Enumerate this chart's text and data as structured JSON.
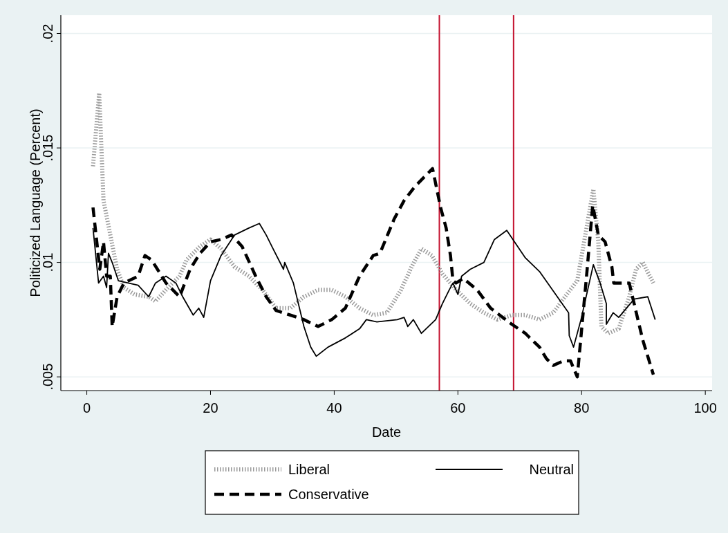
{
  "chart_data": {
    "type": "line",
    "xlabel": "Date",
    "ylabel": "Politicized Language (Percent)",
    "xlim": [
      -4.2,
      101.1
    ],
    "ylim": [
      0.0044,
      0.0208
    ],
    "xticks": [
      0,
      20,
      40,
      60,
      80,
      100
    ],
    "yticks": [
      {
        "value": 0.005,
        "label": ".005"
      },
      {
        "value": 0.01,
        "label": ".01"
      },
      {
        "value": 0.015,
        "label": ".015"
      },
      {
        "value": 0.02,
        "label": ".02"
      }
    ],
    "grid": "y",
    "legend": "bottom",
    "series": [
      {
        "name": "Liberal",
        "color": "#9a9a9a",
        "line_style": "dotted",
        "x": [
          1.0,
          2.0,
          2.7,
          3.8,
          4.9,
          6.0,
          7.7,
          10.0,
          11.1,
          12.8,
          15.0,
          16.1,
          18.3,
          20.0,
          21.7,
          23.9,
          26.2,
          28.4,
          30.6,
          32.9,
          35.1,
          37.4,
          39.6,
          41.8,
          44.1,
          46.3,
          48.5,
          50.8,
          52.5,
          54.1,
          55.8,
          57.5,
          59.7,
          62.0,
          64.2,
          66.4,
          68.7,
          70.9,
          73.2,
          75.4,
          77.6,
          79.3,
          81.9,
          82.7,
          83.2,
          84.3,
          86.0,
          87.7,
          88.8,
          89.9,
          91.6
        ],
        "values": [
          0.0142,
          0.0174,
          0.0127,
          0.0112,
          0.0097,
          0.0089,
          0.0086,
          0.0085,
          0.0083,
          0.0088,
          0.0094,
          0.0101,
          0.0107,
          0.011,
          0.0106,
          0.0098,
          0.0094,
          0.0088,
          0.008,
          0.008,
          0.0085,
          0.0088,
          0.0088,
          0.0085,
          0.008,
          0.0077,
          0.0078,
          0.0088,
          0.0098,
          0.0106,
          0.0103,
          0.0095,
          0.0088,
          0.0082,
          0.0078,
          0.0075,
          0.0077,
          0.0077,
          0.0075,
          0.0078,
          0.0086,
          0.0092,
          0.0132,
          0.0109,
          0.0072,
          0.0069,
          0.0071,
          0.0085,
          0.0097,
          0.01,
          0.0091
        ]
      },
      {
        "name": "Neutral",
        "color": "#000000",
        "line_style": "solid",
        "x": [
          1.0,
          1.9,
          2.7,
          3.2,
          3.5,
          4.1,
          5.1,
          8.3,
          10.0,
          11.1,
          12.8,
          14.4,
          15.5,
          17.2,
          18.1,
          18.9,
          20.0,
          21.7,
          23.9,
          26.2,
          27.9,
          29.0,
          30.1,
          31.8,
          32.0,
          33.4,
          35.1,
          36.2,
          37.1,
          39.0,
          41.8,
          44.1,
          45.2,
          46.9,
          50.2,
          51.3,
          51.9,
          52.8,
          54.1,
          56.4,
          57.5,
          58.6,
          59.2,
          60.0,
          60.6,
          62.0,
          64.2,
          65.9,
          67.9,
          70.9,
          73.2,
          77.9,
          78.0,
          78.7,
          79.9,
          81.9,
          83.0,
          84.0,
          84.0,
          85.1,
          86.0,
          88.5,
          90.7,
          91.9
        ],
        "values": [
          0.0115,
          0.0091,
          0.0094,
          0.0089,
          0.0104,
          0.01,
          0.0092,
          0.009,
          0.0085,
          0.0091,
          0.0094,
          0.0091,
          0.0085,
          0.0077,
          0.008,
          0.0076,
          0.0092,
          0.0103,
          0.0112,
          0.0115,
          0.0117,
          0.0112,
          0.0106,
          0.0097,
          0.01,
          0.0091,
          0.0072,
          0.0063,
          0.0059,
          0.0063,
          0.0067,
          0.0071,
          0.0075,
          0.0074,
          0.0075,
          0.0076,
          0.0072,
          0.0075,
          0.0069,
          0.0075,
          0.0082,
          0.0088,
          0.0091,
          0.0086,
          0.0094,
          0.0097,
          0.01,
          0.011,
          0.0114,
          0.0102,
          0.0096,
          0.0078,
          0.0068,
          0.0063,
          0.0075,
          0.0099,
          0.0091,
          0.0082,
          0.0073,
          0.0078,
          0.0076,
          0.0084,
          0.0085,
          0.0075
        ]
      },
      {
        "name": "Conservative",
        "color": "#000000",
        "line_style": "dashed",
        "x": [
          1.0,
          2.1,
          2.7,
          3.2,
          3.8,
          4.1,
          4.9,
          6.0,
          8.3,
          9.4,
          10.5,
          12.8,
          15.0,
          16.7,
          18.3,
          20.0,
          21.7,
          23.4,
          25.1,
          27.3,
          29.0,
          30.6,
          32.9,
          35.1,
          37.4,
          39.6,
          41.8,
          44.1,
          46.3,
          47.4,
          49.7,
          51.3,
          53.0,
          55.9,
          57.2,
          58.1,
          58.8,
          59.2,
          59.7,
          60.9,
          63.1,
          65.3,
          68.7,
          70.9,
          73.2,
          74.3,
          75.4,
          77.1,
          78.2,
          79.3,
          80.8,
          81.8,
          82.7,
          83.8,
          84.9,
          85.2,
          87.7,
          89.9,
          91.6
        ],
        "values": [
          0.0124,
          0.0097,
          0.0109,
          0.0094,
          0.0094,
          0.0072,
          0.0085,
          0.0091,
          0.0094,
          0.0103,
          0.0101,
          0.0091,
          0.0085,
          0.0097,
          0.0104,
          0.0109,
          0.011,
          0.0112,
          0.0107,
          0.0094,
          0.0085,
          0.0079,
          0.0077,
          0.0075,
          0.0072,
          0.0075,
          0.008,
          0.0094,
          0.0103,
          0.0104,
          0.0119,
          0.0127,
          0.0133,
          0.0141,
          0.0124,
          0.0115,
          0.0103,
          0.0092,
          0.0091,
          0.0093,
          0.0088,
          0.008,
          0.0073,
          0.0069,
          0.0063,
          0.0058,
          0.0055,
          0.0057,
          0.0057,
          0.005,
          0.0094,
          0.0125,
          0.0112,
          0.0109,
          0.0098,
          0.0091,
          0.0091,
          0.0066,
          0.0051
        ]
      }
    ],
    "ref_lines": [
      {
        "axis": "x",
        "value": 57,
        "color": "#c4122f"
      },
      {
        "axis": "x",
        "value": 69,
        "color": "#c4122f"
      }
    ]
  }
}
